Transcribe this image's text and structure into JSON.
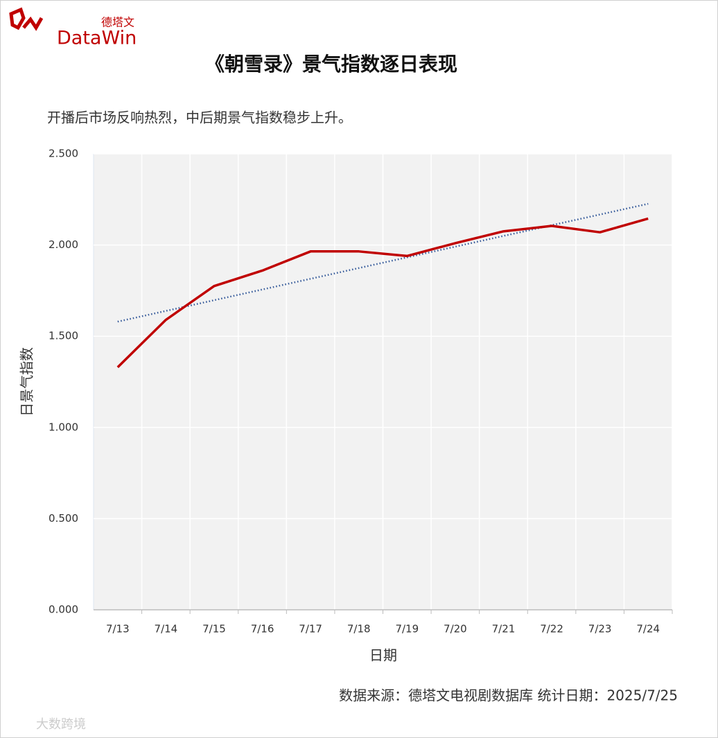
{
  "logo": {
    "cn": "德塔文",
    "en": "DataWin"
  },
  "chart_data": {
    "type": "line",
    "title": "《朝雪录》景气指数逐日表现",
    "subtitle": "开播后市场反响热烈，中后期景气指数稳步上升。",
    "y_label": "日景气指数",
    "x_label": "日期",
    "categories": [
      "7/13",
      "7/14",
      "7/15",
      "7/16",
      "7/17",
      "7/18",
      "7/19",
      "7/20",
      "7/21",
      "7/22",
      "7/23",
      "7/24"
    ],
    "series": [
      {
        "color": "#c00000",
        "values": [
          1.33,
          1.59,
          1.775,
          1.86,
          1.965,
          1.965,
          1.94,
          2.01,
          2.075,
          2.105,
          2.07,
          2.145
        ]
      }
    ],
    "trendline": {
      "color": "#2f5597",
      "values": [
        1.58,
        2.226
      ]
    },
    "ylim": [
      0,
      2.5
    ],
    "yticks": [
      {
        "value": 0,
        "label": "0.000"
      },
      {
        "value": 0.5,
        "label": "0.500"
      },
      {
        "value": 1,
        "label": "1.000"
      },
      {
        "value": 1.5,
        "label": "1.500"
      },
      {
        "value": 2,
        "label": "2.000"
      },
      {
        "value": 2.5,
        "label": "2.500"
      }
    ],
    "grid": true,
    "source": "数据来源：德塔文电视剧数据库   统计日期：2025/7/25"
  },
  "watermark": "大数跨境"
}
